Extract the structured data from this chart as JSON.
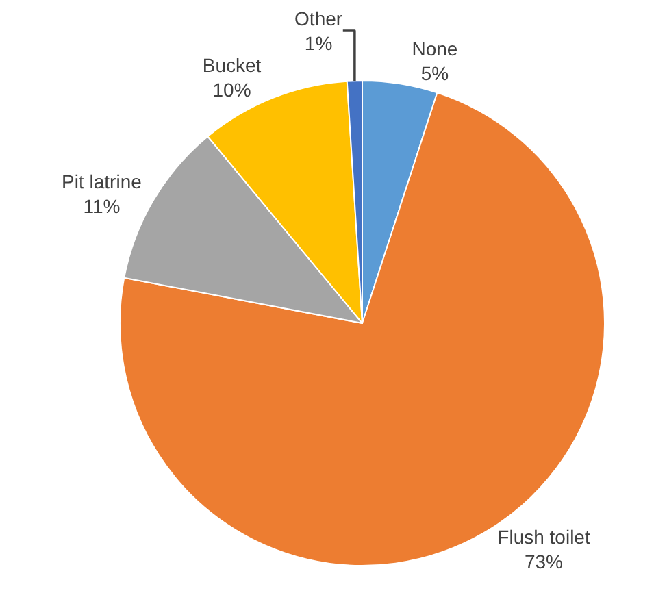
{
  "chart_data": {
    "type": "pie",
    "categories": [
      "None",
      "Flush toilet",
      "Pit latrine",
      "Bucket",
      "Other"
    ],
    "values": [
      5,
      73,
      11,
      10,
      1
    ],
    "colors": [
      "#5b9bd5",
      "#ed7d31",
      "#a5a5a5",
      "#ffc000",
      "#4472c4"
    ],
    "value_labels": [
      "5%",
      "73%",
      "11%",
      "10%",
      "1%"
    ],
    "legend": false
  }
}
